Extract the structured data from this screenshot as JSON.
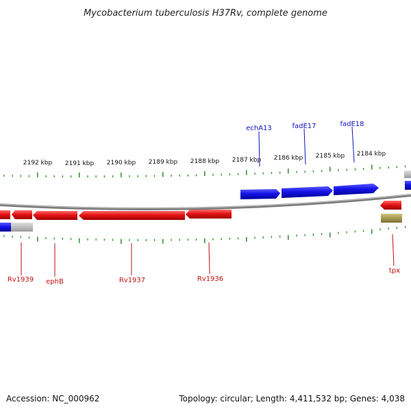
{
  "title": "Mycobacterium tuberculosis H37Rv, complete genome",
  "footer": {
    "accession": "Accession: NC_000962",
    "summary": "Topology: circular; Length: 4,411,532 bp; Genes: 4,038"
  },
  "tick_labels": [
    "2192 kbp",
    "2191 kbp",
    "2190 kbp",
    "2189 kbp",
    "2188 kbp",
    "2187 kbp",
    "2186 kbp",
    "2185 kbp",
    "2184 kbp"
  ],
  "forward_gene_labels": [
    "echA13",
    "fadE17",
    "fadE18"
  ],
  "reverse_gene_labels": [
    "Rv1939",
    "ephB",
    "Rv1937",
    "Rv1936",
    "tpx"
  ],
  "colors": {
    "forward_gene": "#1414e6",
    "reverse_gene": "#e61414",
    "backbone": "#7a7a7a",
    "tick": "#2e8b2e",
    "grey_feature": "#b8b8b8",
    "olive_feature": "#a89a4a"
  }
}
